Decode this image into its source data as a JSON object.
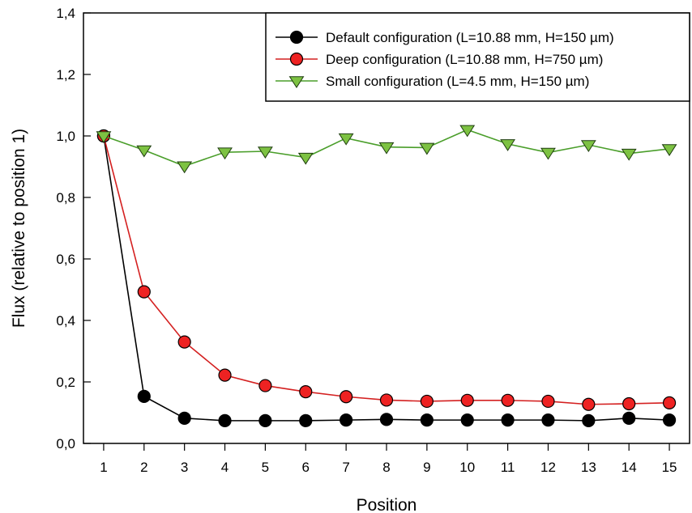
{
  "chart_data": {
    "type": "line",
    "xlabel": "Position",
    "ylabel": "Flux (relative to position 1)",
    "x": [
      1,
      2,
      3,
      4,
      5,
      6,
      7,
      8,
      9,
      10,
      11,
      12,
      13,
      14,
      15
    ],
    "xlim": [
      0.5,
      15.5
    ],
    "ylim": [
      0,
      1.4
    ],
    "x_ticks": [
      "1",
      "2",
      "3",
      "4",
      "5",
      "6",
      "7",
      "8",
      "9",
      "10",
      "11",
      "12",
      "13",
      "14",
      "15"
    ],
    "y_ticks": [
      {
        "value": 0.0,
        "label": "0,0"
      },
      {
        "value": 0.2,
        "label": "0,2"
      },
      {
        "value": 0.4,
        "label": "0,4"
      },
      {
        "value": 0.6,
        "label": "0,6"
      },
      {
        "value": 0.8,
        "label": "0,8"
      },
      {
        "value": 1.0,
        "label": "1,0"
      },
      {
        "value": 1.2,
        "label": "1,2"
      },
      {
        "value": 1.4,
        "label": "1,4"
      }
    ],
    "grid": false,
    "legend_position": "top-right",
    "series": [
      {
        "name": "Default configuration (L=10.88 mm, H=150 µm)",
        "marker": "circle",
        "line_color": "#000000",
        "marker_fill": "#000000",
        "values": [
          1.0,
          0.153,
          0.082,
          0.074,
          0.074,
          0.074,
          0.076,
          0.078,
          0.076,
          0.076,
          0.076,
          0.076,
          0.074,
          0.082,
          0.076
        ]
      },
      {
        "name": "Deep configuration (L=10.88 mm, H=750 µm)",
        "marker": "circle",
        "line_color": "#d42020",
        "marker_fill": "#ee2222",
        "values": [
          1.0,
          0.493,
          0.33,
          0.222,
          0.188,
          0.168,
          0.152,
          0.141,
          0.137,
          0.14,
          0.14,
          0.137,
          0.127,
          0.129,
          0.132
        ]
      },
      {
        "name": "Small configuration (L=4.5 mm, H=150 µm)",
        "marker": "triangle-down",
        "line_color": "#4a9e2a",
        "marker_fill": "#7dc242",
        "values": [
          1.0,
          0.954,
          0.902,
          0.947,
          0.95,
          0.93,
          0.993,
          0.964,
          0.962,
          1.02,
          0.974,
          0.946,
          0.971,
          0.943,
          0.958
        ]
      }
    ]
  }
}
